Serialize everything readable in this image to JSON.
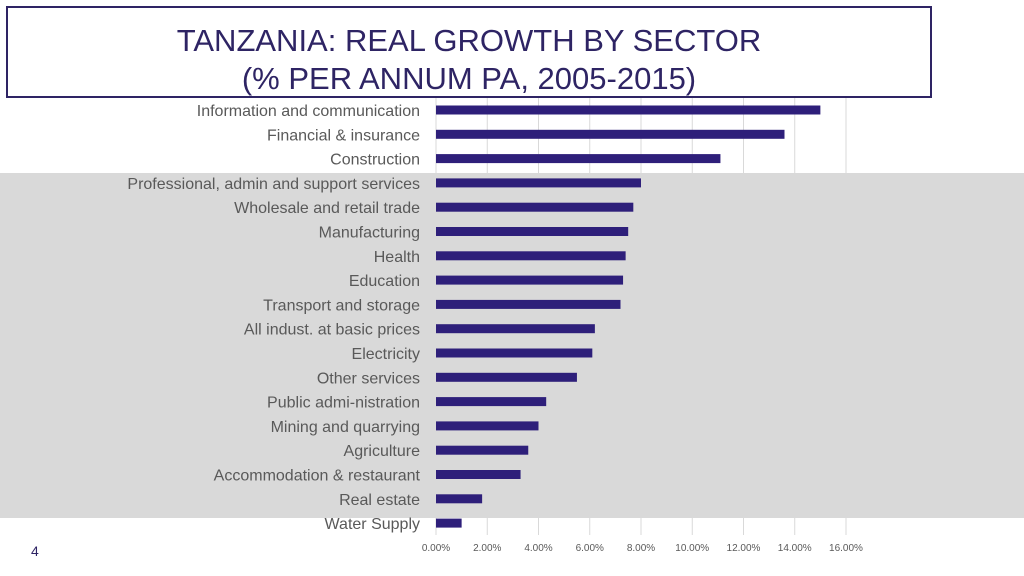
{
  "slide": {
    "title_line1": "TANZANIA: REAL GROWTH BY SECTOR",
    "title_line2": "(% PER ANNUM PA, 2005-2015)",
    "page_number": "4"
  },
  "colors": {
    "bar": "#2e1f7a",
    "title": "#2e2464",
    "band": "#d9d9d9",
    "grid": "#d9d9d9",
    "label": "#595959"
  },
  "chart_data": {
    "type": "bar",
    "orientation": "horizontal",
    "title": "",
    "xlabel": "",
    "ylabel": "",
    "xlim": [
      0,
      16
    ],
    "grid": true,
    "categories": [
      "Information and communication",
      "Financial & insurance",
      "Construction",
      "Professional, admin and support services",
      "Wholesale and retail trade",
      "Manufacturing",
      "Health",
      "Education",
      "Transport and storage",
      "All indust. at basic prices",
      "Electricity",
      "Other services",
      "Public admi-nistration",
      "Mining and quarrying",
      "Agriculture",
      "Accommodation & restaurant",
      "Real estate",
      "Water Supply"
    ],
    "values": [
      15.0,
      13.6,
      11.1,
      8.0,
      7.7,
      7.5,
      7.4,
      7.3,
      7.2,
      6.2,
      6.1,
      5.5,
      4.3,
      4.0,
      3.6,
      3.3,
      1.8,
      1.0
    ],
    "x_ticks": [
      "0.00%",
      "2.00%",
      "4.00%",
      "6.00%",
      "8.00%",
      "10.00%",
      "12.00%",
      "14.00%",
      "16.00%"
    ]
  }
}
